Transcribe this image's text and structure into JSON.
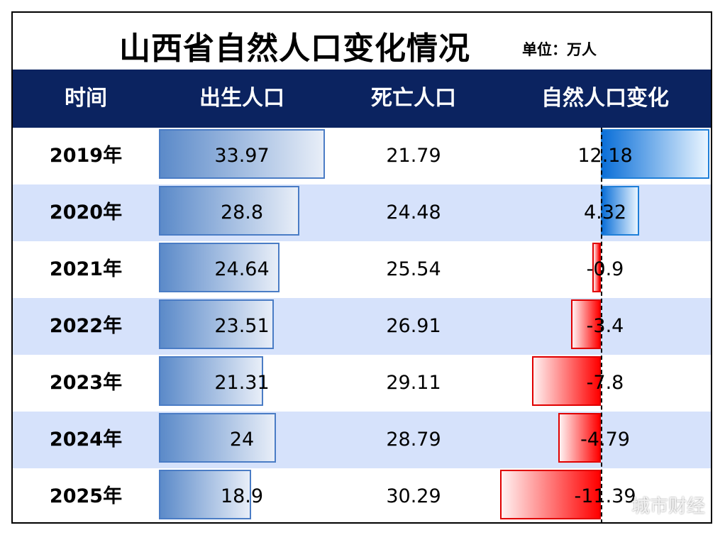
{
  "title": "山西省自然人口变化情况",
  "unit": "单位：万人",
  "watermark": "城市财经",
  "colors": {
    "header_bg": "#0b2360",
    "alt_row_bg": "#d6e2fb",
    "birth_bar": "#5b8ac9",
    "positive_bar": "#0a6fd8",
    "negative_bar": "#ff0000"
  },
  "chart_data": {
    "type": "table",
    "columns": [
      "时间",
      "出生人口",
      "死亡人口",
      "自然人口变化"
    ],
    "rows": [
      {
        "year": "2019年",
        "births": 33.97,
        "births_text": "33.97",
        "deaths": 21.79,
        "deaths_text": "21.79",
        "change": 12.18,
        "change_text": "12.18"
      },
      {
        "year": "2020年",
        "births": 28.8,
        "births_text": "28.8",
        "deaths": 24.48,
        "deaths_text": "24.48",
        "change": 4.32,
        "change_text": "4.32"
      },
      {
        "year": "2021年",
        "births": 24.64,
        "births_text": "24.64",
        "deaths": 25.54,
        "deaths_text": "25.54",
        "change": -0.9,
        "change_text": "-0.9"
      },
      {
        "year": "2022年",
        "births": 23.51,
        "births_text": "23.51",
        "deaths": 26.91,
        "deaths_text": "26.91",
        "change": -3.4,
        "change_text": "-3.4"
      },
      {
        "year": "2023年",
        "births": 21.31,
        "births_text": "21.31",
        "deaths": 29.11,
        "deaths_text": "29.11",
        "change": -7.8,
        "change_text": "-7.8"
      },
      {
        "year": "2024年",
        "births": 24,
        "births_text": "24",
        "deaths": 28.79,
        "deaths_text": "28.79",
        "change": -4.79,
        "change_text": "-4.79"
      },
      {
        "year": "2025年",
        "births": 18.9,
        "births_text": "18.9",
        "deaths": 30.29,
        "deaths_text": "30.29",
        "change": -11.39,
        "change_text": "-11.39"
      }
    ]
  }
}
